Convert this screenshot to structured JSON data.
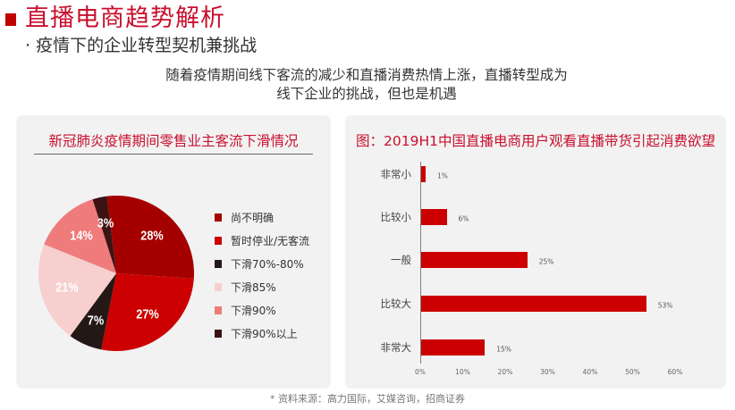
{
  "header": {
    "title": "直播电商趋势解析",
    "subtitle": "· 疫情下的企业转型契机兼挑战",
    "intro_line1": "随着疫情期间线下客流的减少和直播消费热情上涨，直播转型成为",
    "intro_line2": "线下企业的挑战，但也是机遇"
  },
  "colors": {
    "brand_red": "#c8102e",
    "bar_red": "#cc0000",
    "panel_bg": "#f2f2f2"
  },
  "left_panel": {
    "title": "新冠肺炎疫情期间零售业主客流下滑情况",
    "slice_labels": [
      "28%",
      "27%",
      "7%",
      "21%",
      "14%",
      "3%"
    ],
    "legend": [
      {
        "label": "尚不明确",
        "color": "#a50000"
      },
      {
        "label": "暂时停业/无客流",
        "color": "#cc0000"
      },
      {
        "label": "下滑70%-80%",
        "color": "#231815"
      },
      {
        "label": "下滑85%",
        "color": "#f7cfcf"
      },
      {
        "label": "下滑90%",
        "color": "#ef7b7b"
      },
      {
        "label": "下滑90%以上",
        "color": "#3d1212"
      }
    ]
  },
  "right_panel": {
    "title": "图：2019H1中国直播电商用户观看直播带货引起消费欲望",
    "categories": [
      "非常小",
      "比较小",
      "一般",
      "比较大",
      "非常大"
    ],
    "value_labels": [
      "1%",
      "6%",
      "25%",
      "53%",
      "15%"
    ],
    "ticks": [
      "0%",
      "10%",
      "20%",
      "30%",
      "40%",
      "50%",
      "60%"
    ]
  },
  "footer": {
    "source": "* 资料来源：高力国际，艾媒咨询，招商证券"
  },
  "chart_data": [
    {
      "type": "pie",
      "title": "新冠肺炎疫情期间零售业主客流下滑情况",
      "categories": [
        "尚不明确",
        "暂时停业/无客流",
        "下滑70%-80%",
        "下滑85%",
        "下滑90%",
        "下滑90%以上"
      ],
      "values": [
        28,
        27,
        7,
        21,
        14,
        3
      ],
      "colors": [
        "#a50000",
        "#cc0000",
        "#231815",
        "#f7cfcf",
        "#ef7b7b",
        "#3d1212"
      ],
      "legend_position": "right",
      "unit": "%"
    },
    {
      "type": "bar",
      "orientation": "horizontal",
      "title": "图：2019H1中国直播电商用户观看直播带货引起消费欲望",
      "categories": [
        "非常小",
        "比较小",
        "一般",
        "比较大",
        "非常大"
      ],
      "values": [
        1,
        6,
        25,
        53,
        15
      ],
      "xlabel": "",
      "ylabel": "",
      "xlim": [
        0,
        60
      ],
      "xticks": [
        "0%",
        "10%",
        "20%",
        "30%",
        "40%",
        "50%",
        "60%"
      ],
      "grid": false,
      "unit": "%",
      "color": "#cc0000"
    }
  ]
}
